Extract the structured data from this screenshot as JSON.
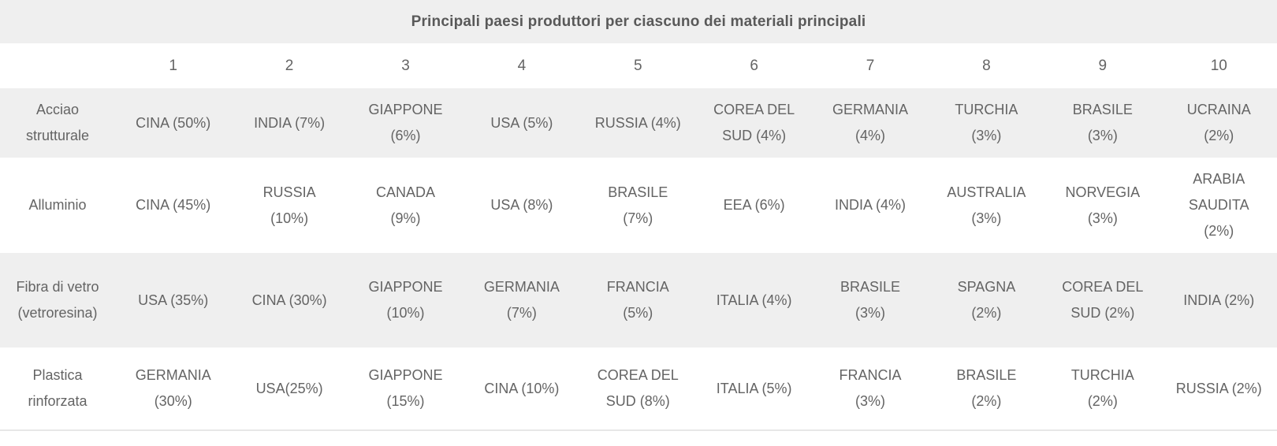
{
  "chart_data": {
    "type": "table",
    "title": "Principali paesi produttori per ciascuno dei materiali principali",
    "rank_headers": [
      "1",
      "2",
      "3",
      "4",
      "5",
      "6",
      "7",
      "8",
      "9",
      "10"
    ],
    "rows": [
      {
        "material": "Acciao strutturale",
        "producers": [
          "CINA (50%)",
          "INDIA (7%)",
          "GIAPPONE (6%)",
          "USA (5%)",
          "RUSSIA (4%)",
          "COREA DEL SUD (4%)",
          "GERMANIA (4%)",
          "TURCHIA (3%)",
          "BRASILE (3%)",
          "UCRAINA (2%)"
        ]
      },
      {
        "material": "Alluminio",
        "producers": [
          "CINA (45%)",
          "RUSSIA (10%)",
          "CANADA (9%)",
          "USA (8%)",
          "BRASILE (7%)",
          "EEA (6%)",
          "INDIA (4%)",
          "AUSTRALIA (3%)",
          "NORVEGIA (3%)",
          "ARABIA SAUDITA (2%)"
        ]
      },
      {
        "material": "Fibra di vetro (vetroresina)",
        "producers": [
          "USA (35%)",
          "CINA (30%)",
          "GIAPPONE (10%)",
          "GERMANIA (7%)",
          "FRANCIA (5%)",
          "ITALIA (4%)",
          "BRASILE (3%)",
          "SPAGNA (2%)",
          "COREA DEL SUD (2%)",
          "INDIA (2%)"
        ]
      },
      {
        "material": "Plastica rinforzata",
        "producers": [
          "GERMANIA (30%)",
          "USA(25%)",
          "GIAPPONE (15%)",
          "CINA (10%)",
          "COREA DEL SUD (8%)",
          "ITALIA (5%)",
          "FRANCIA (3%)",
          "BRASILE (2%)",
          "TURCHIA (2%)",
          "RUSSIA (2%)"
        ]
      }
    ]
  },
  "colors": {
    "band_bg": "#efefef",
    "title_text": "#595959",
    "cell_text": "#646464",
    "divider": "#e7e7e7"
  }
}
